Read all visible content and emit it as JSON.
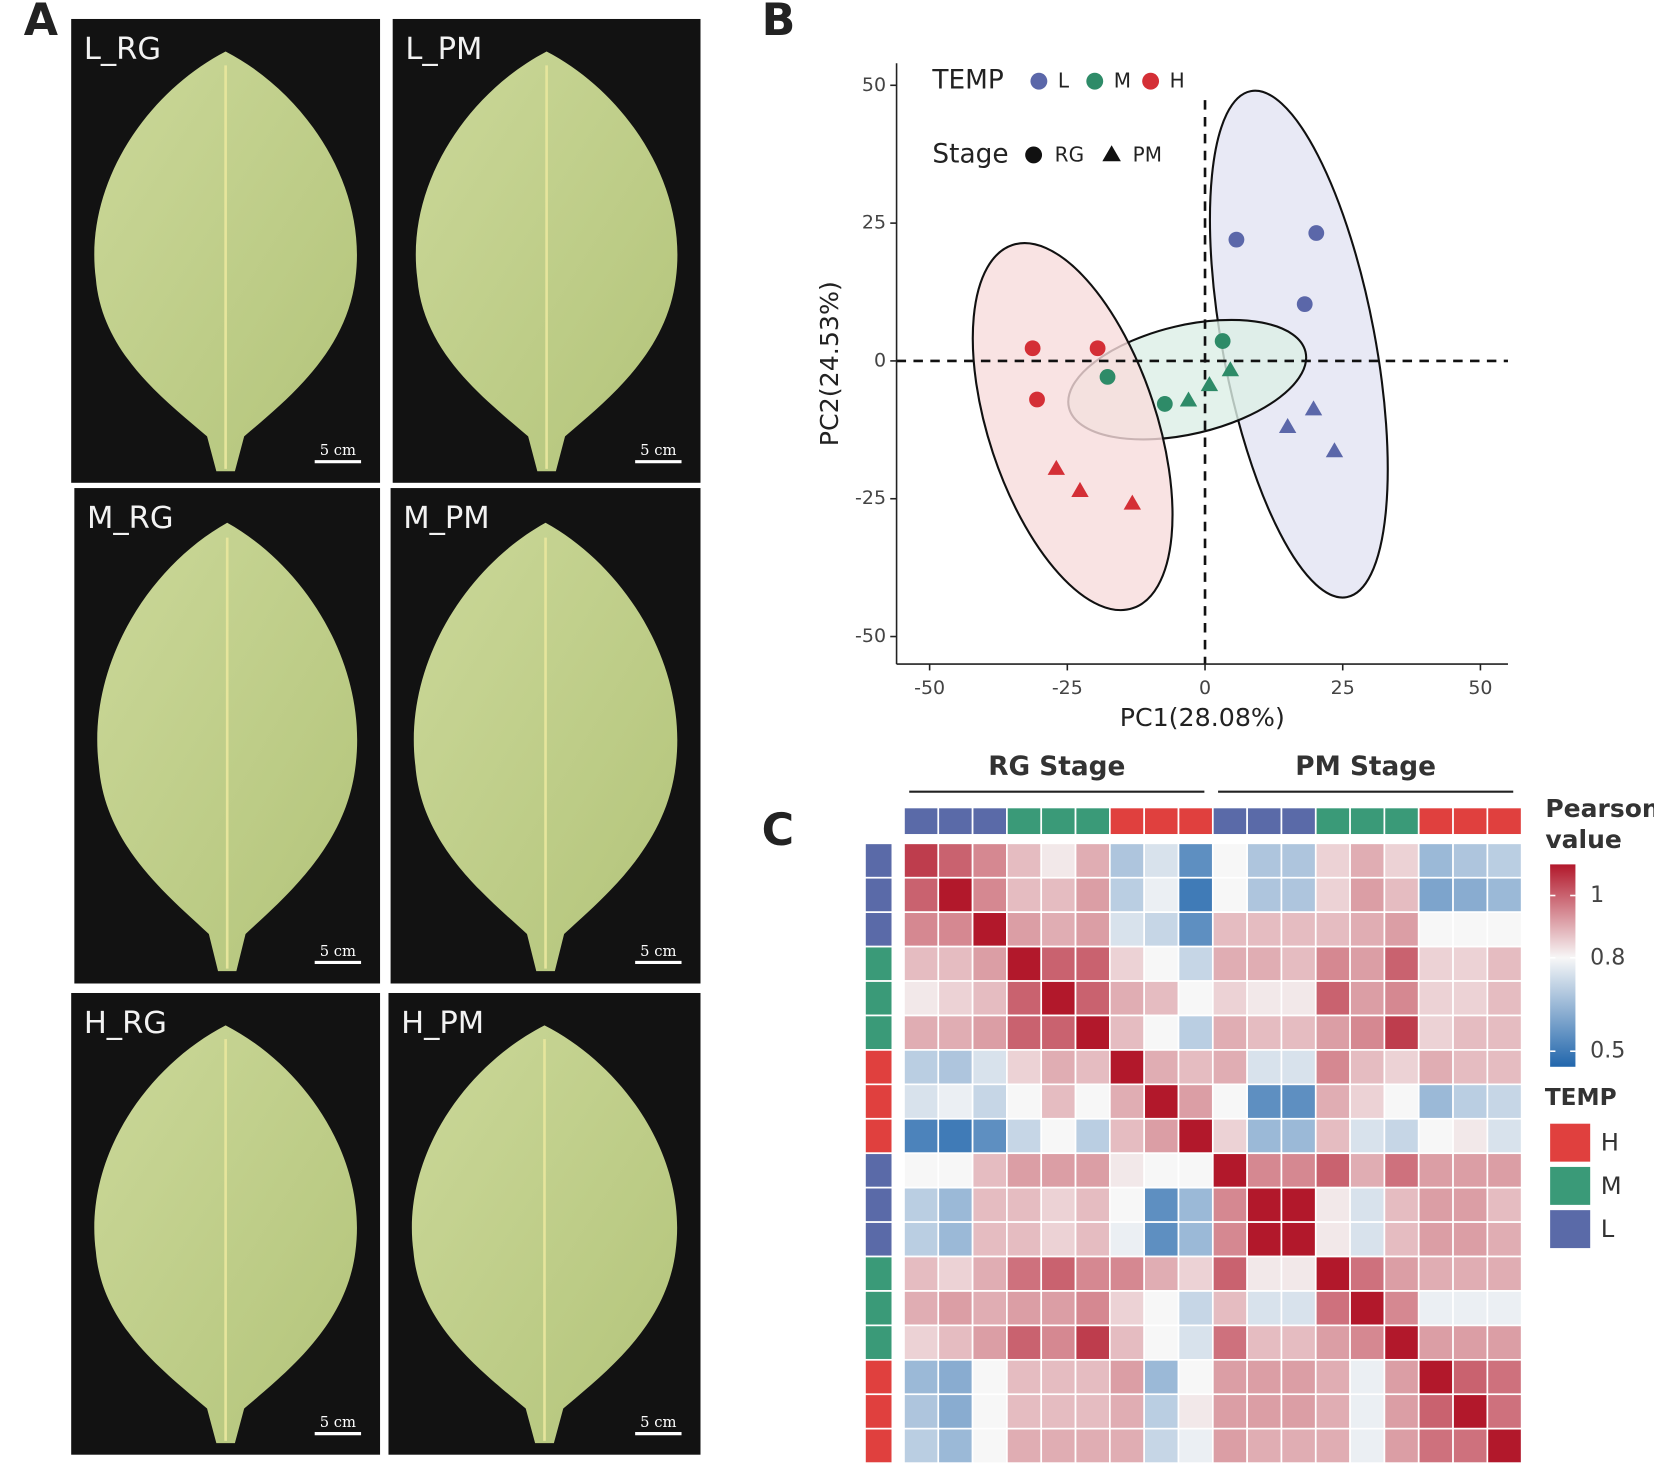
{
  "panel_labels": [
    "A",
    "B",
    "C"
  ],
  "photos": {
    "panels": [
      "L_RG",
      "L_PM",
      "M_RG",
      "M_PM",
      "H_RG",
      "H_PM"
    ],
    "scale_bar": "5 cm"
  },
  "chart_data": [
    {
      "type": "scatter",
      "xlabel": "PC1(28.08%)",
      "ylabel": "PC2(24.53%)",
      "xlim": [
        -56,
        55
      ],
      "ylim": [
        -55,
        54
      ],
      "xticks": [
        -50,
        -25,
        0,
        25,
        50
      ],
      "yticks": [
        -50,
        -25,
        0,
        25,
        50
      ],
      "reference_lines": {
        "x": 0,
        "y": 0
      },
      "legend": {
        "temp_title": "TEMP",
        "temp": [
          {
            "name": "L",
            "color": "#5b67a9"
          },
          {
            "name": "M",
            "color": "#2e8b68"
          },
          {
            "name": "H",
            "color": "#d42f36"
          }
        ],
        "stage_title": "Stage",
        "stage": [
          {
            "name": "RG",
            "marker": "circle"
          },
          {
            "name": "PM",
            "marker": "triangle"
          }
        ]
      },
      "series": [
        {
          "color": "#5b67a9",
          "ellipse_fill": "#e2e3f3",
          "marker": "circle",
          "x": [
            5.7,
            20.2,
            18.1
          ],
          "y": [
            22,
            23.2,
            10.3
          ]
        },
        {
          "color": "#5b67a9",
          "ellipse_fill": "#e2e3f3",
          "marker": "triangle",
          "x": [
            15,
            19.7,
            23.5
          ],
          "y": [
            -12,
            -8.8,
            -16.4
          ]
        },
        {
          "color": "#2e8b68",
          "ellipse_fill": "#dcefe6",
          "marker": "circle",
          "x": [
            -17.7,
            -7.3,
            3.2
          ],
          "y": [
            -2.9,
            -7.8,
            3.6
          ]
        },
        {
          "color": "#2e8b68",
          "ellipse_fill": "#dcefe6",
          "marker": "triangle",
          "x": [
            -3,
            0.8,
            4.6
          ],
          "y": [
            -7.2,
            -4.4,
            -1.7
          ]
        },
        {
          "color": "#d42f36",
          "ellipse_fill": "#f8dcdc",
          "marker": "circle",
          "x": [
            -31.3,
            -19.5,
            -30.5
          ],
          "y": [
            2.3,
            2.3,
            -7
          ]
        },
        {
          "color": "#d42f36",
          "ellipse_fill": "#f8dcdc",
          "marker": "triangle",
          "x": [
            -27,
            -22.7,
            -13.2
          ],
          "y": [
            -19.6,
            -23.6,
            -25.9
          ]
        }
      ]
    },
    {
      "type": "heatmap",
      "column_groups": [
        {
          "label": "RG Stage",
          "span": 9
        },
        {
          "label": "PM Stage",
          "span": 9
        }
      ],
      "annotation_colors": [
        "#5a6aa8",
        "#5a6aa8",
        "#5a6aa8",
        "#3a9a78",
        "#3a9a78",
        "#3a9a78",
        "#e0403e",
        "#e0403e",
        "#e0403e",
        "#5a6aa8",
        "#5a6aa8",
        "#5a6aa8",
        "#3a9a78",
        "#3a9a78",
        "#3a9a78",
        "#e0403e",
        "#e0403e",
        "#e0403e"
      ],
      "clim": [
        0.45,
        1.1
      ],
      "colorscale": [
        [
          0.45,
          "#2166ac"
        ],
        [
          0.8,
          "#f7f7f7"
        ],
        [
          1.1,
          "#b2182b"
        ]
      ],
      "colorbar_title": "Pearson value",
      "colorbar_ticks": [
        1,
        0.8,
        0.5
      ],
      "legend": {
        "title": "TEMP",
        "items": [
          {
            "name": "H",
            "color": "#e0403e"
          },
          {
            "name": "M",
            "color": "#3a9a78"
          },
          {
            "name": "L",
            "color": "#5a6aa8"
          }
        ]
      },
      "values": [
        [
          1.05,
          1.0,
          0.95,
          0.88,
          0.82,
          0.9,
          0.68,
          0.75,
          0.55,
          0.8,
          0.68,
          0.68,
          0.85,
          0.9,
          0.85,
          0.65,
          0.68,
          0.7
        ],
        [
          1.0,
          1.1,
          0.95,
          0.88,
          0.88,
          0.92,
          0.7,
          0.78,
          0.5,
          0.8,
          0.68,
          0.68,
          0.85,
          0.92,
          0.88,
          0.6,
          0.62,
          0.65
        ],
        [
          0.95,
          0.95,
          1.1,
          0.92,
          0.9,
          0.92,
          0.75,
          0.72,
          0.55,
          0.88,
          0.88,
          0.88,
          0.88,
          0.9,
          0.92,
          0.8,
          0.8,
          0.8
        ],
        [
          0.88,
          0.88,
          0.92,
          1.1,
          1.0,
          1.0,
          0.85,
          0.8,
          0.72,
          0.9,
          0.9,
          0.88,
          0.95,
          0.92,
          1.0,
          0.85,
          0.85,
          0.88
        ],
        [
          0.82,
          0.85,
          0.88,
          1.0,
          1.1,
          1.0,
          0.9,
          0.88,
          0.8,
          0.85,
          0.82,
          0.82,
          1.0,
          0.92,
          0.95,
          0.85,
          0.85,
          0.88
        ],
        [
          0.9,
          0.9,
          0.92,
          1.0,
          1.0,
          1.1,
          0.88,
          0.8,
          0.7,
          0.9,
          0.88,
          0.88,
          0.92,
          0.95,
          1.05,
          0.85,
          0.88,
          0.88
        ],
        [
          0.7,
          0.68,
          0.75,
          0.85,
          0.9,
          0.88,
          1.1,
          0.9,
          0.88,
          0.9,
          0.75,
          0.75,
          0.95,
          0.88,
          0.85,
          0.9,
          0.88,
          0.88
        ],
        [
          0.75,
          0.78,
          0.72,
          0.8,
          0.88,
          0.8,
          0.9,
          1.1,
          0.92,
          0.8,
          0.55,
          0.55,
          0.9,
          0.85,
          0.8,
          0.65,
          0.7,
          0.72
        ],
        [
          0.52,
          0.5,
          0.55,
          0.72,
          0.8,
          0.7,
          0.88,
          0.92,
          1.1,
          0.85,
          0.65,
          0.65,
          0.88,
          0.75,
          0.72,
          0.8,
          0.82,
          0.75
        ],
        [
          0.8,
          0.8,
          0.88,
          0.92,
          0.92,
          0.92,
          0.82,
          0.8,
          0.8,
          1.1,
          0.95,
          0.95,
          1.0,
          0.9,
          0.98,
          0.92,
          0.92,
          0.92
        ],
        [
          0.7,
          0.65,
          0.88,
          0.88,
          0.85,
          0.88,
          0.8,
          0.55,
          0.65,
          0.95,
          1.1,
          1.1,
          0.82,
          0.75,
          0.88,
          0.92,
          0.92,
          0.88
        ],
        [
          0.7,
          0.65,
          0.88,
          0.88,
          0.85,
          0.88,
          0.78,
          0.55,
          0.65,
          0.95,
          1.1,
          1.1,
          0.82,
          0.75,
          0.88,
          0.92,
          0.92,
          0.9
        ],
        [
          0.88,
          0.85,
          0.9,
          0.98,
          1.0,
          0.95,
          0.95,
          0.9,
          0.85,
          1.0,
          0.82,
          0.82,
          1.1,
          0.98,
          0.92,
          0.9,
          0.9,
          0.9
        ],
        [
          0.9,
          0.92,
          0.9,
          0.92,
          0.92,
          0.95,
          0.85,
          0.8,
          0.72,
          0.88,
          0.75,
          0.75,
          0.98,
          1.1,
          0.95,
          0.78,
          0.78,
          0.78
        ],
        [
          0.85,
          0.88,
          0.92,
          1.0,
          0.95,
          1.05,
          0.88,
          0.8,
          0.75,
          0.98,
          0.88,
          0.88,
          0.92,
          0.95,
          1.1,
          0.92,
          0.92,
          0.92
        ],
        [
          0.65,
          0.62,
          0.8,
          0.88,
          0.88,
          0.88,
          0.92,
          0.65,
          0.8,
          0.92,
          0.92,
          0.92,
          0.9,
          0.78,
          0.92,
          1.1,
          1.0,
          0.98
        ],
        [
          0.68,
          0.62,
          0.8,
          0.88,
          0.88,
          0.88,
          0.9,
          0.7,
          0.82,
          0.92,
          0.92,
          0.92,
          0.9,
          0.78,
          0.92,
          1.0,
          1.1,
          0.98
        ],
        [
          0.7,
          0.65,
          0.8,
          0.9,
          0.9,
          0.9,
          0.9,
          0.72,
          0.78,
          0.92,
          0.9,
          0.9,
          0.9,
          0.78,
          0.92,
          0.98,
          0.98,
          1.1
        ]
      ]
    }
  ]
}
